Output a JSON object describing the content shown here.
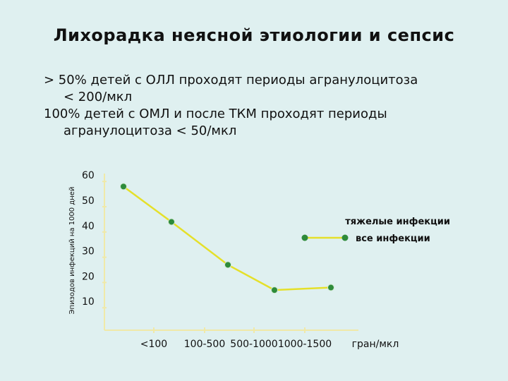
{
  "slide": {
    "title": "Лихорадка неясной этиологии и сепсис",
    "bullets": [
      {
        "line1": "> 50% детей с ОЛЛ проходят периоды агранулоцитоза",
        "line2": "< 200/мкл"
      },
      {
        "line1": "100% детей с ОМЛ и после ТКМ проходят периоды",
        "line2": "агранулоцитоза < 50/мкл"
      }
    ]
  },
  "chart_data": {
    "type": "line",
    "title": "",
    "ylabel": "Эпизодов инфекций на 1000 дней",
    "xlabel": "гран/мкл",
    "y_ticks": [
      10,
      20,
      30,
      40,
      50,
      60
    ],
    "ylim": [
      0,
      60
    ],
    "x_tick_labels": [
      "<100",
      "100-500",
      "500-1000",
      "1000-1500"
    ],
    "series": [
      {
        "name": "все инфекции",
        "color": "#e5e02a",
        "marker_color": "#2e8b3a",
        "points": [
          {
            "x": "<100",
            "y": 58
          },
          {
            "x": "100-500",
            "y": 44
          },
          {
            "x": "500-1000",
            "y": 27
          },
          {
            "x": "1000-1500",
            "y": 17
          },
          {
            "x": "гран/мкл",
            "y": 18
          }
        ]
      }
    ],
    "legend": {
      "items": [
        "тяжелые инфекции",
        "все инфекции"
      ],
      "placement": "right"
    },
    "grid": false
  }
}
